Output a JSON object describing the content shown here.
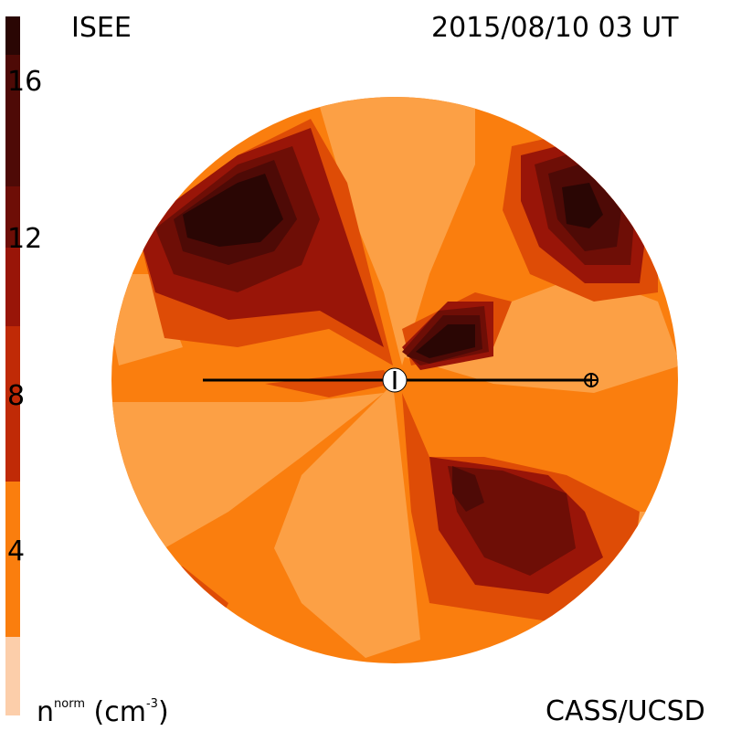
{
  "header": {
    "source_label": "ISEE",
    "timestamp": "2015/08/10 03 UT",
    "credit": "CASS/UCSD"
  },
  "colorbar": {
    "tick_labels": [
      "16",
      "12",
      "8",
      "4"
    ],
    "unit_base": "n",
    "unit_sup": "norm",
    "unit_text": " (cm",
    "unit_exp": "-3",
    "unit_close": ")",
    "colors": [
      "#2a0604",
      "#4e0a06",
      "#6e0e06",
      "#991508",
      "#c02a06",
      "#de4c06",
      "#fa7e0e",
      "#fca045",
      "#fcceaa"
    ]
  },
  "plot": {
    "type": "density-contour-map",
    "disk_color": "#fa7e0e",
    "markers": [
      "sun-marker",
      "earth-marker"
    ]
  }
}
